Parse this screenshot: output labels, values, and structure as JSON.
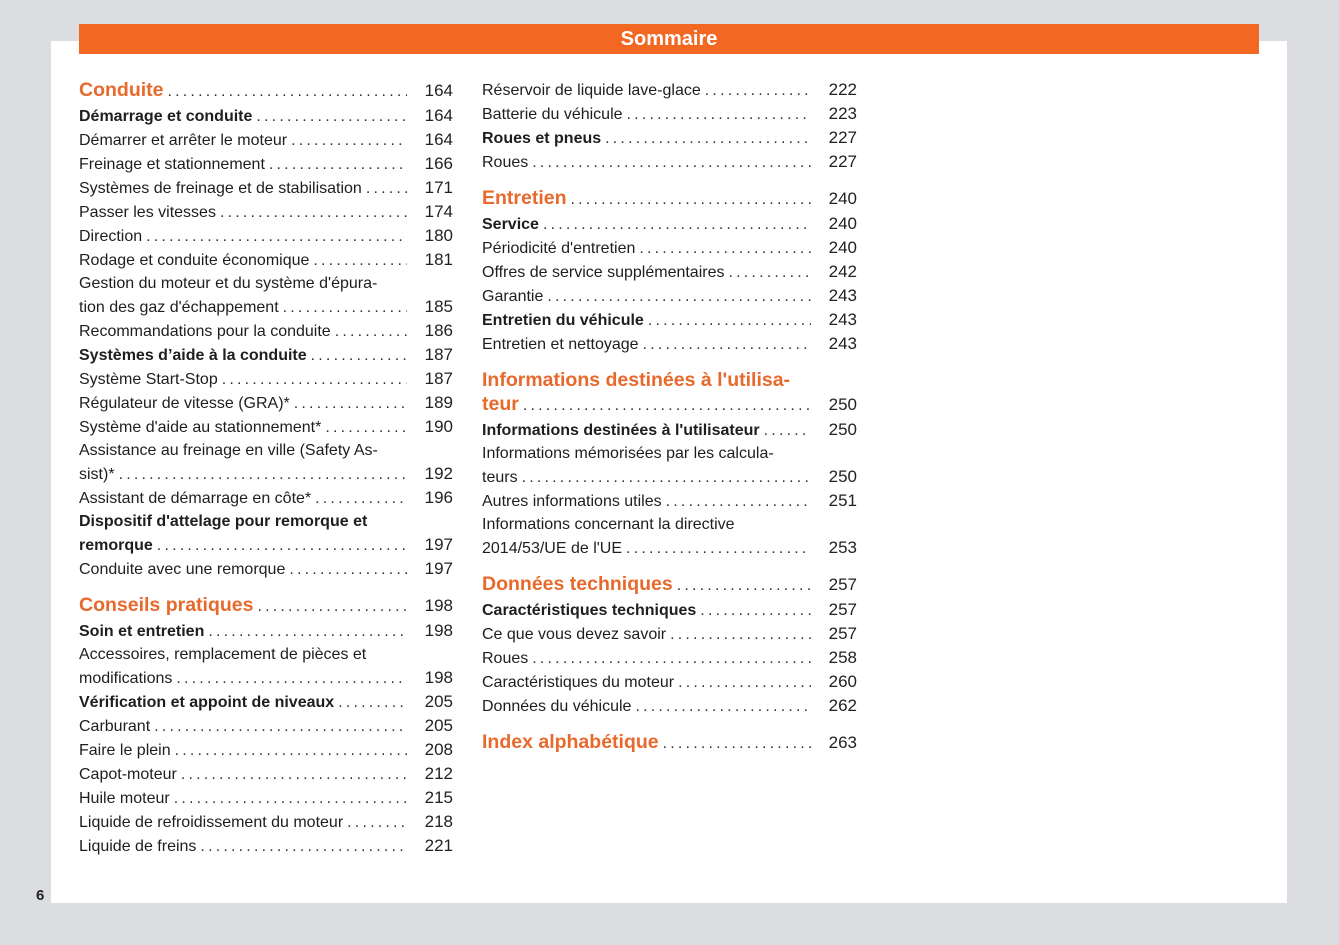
{
  "header": {
    "title": "Sommaire"
  },
  "footer": {
    "page_number": "6"
  },
  "colors": {
    "accent": "#f26722",
    "background": "#dcdde0"
  },
  "toc": {
    "columns": [
      [
        {
          "level": "h",
          "lines": [
            "Conduite"
          ],
          "page": "164"
        },
        {
          "level": "b",
          "lines": [
            "Démarrage et conduite"
          ],
          "page": "164"
        },
        {
          "level": "n",
          "lines": [
            "Démarrer et arrêter le moteur"
          ],
          "page": "164"
        },
        {
          "level": "n",
          "lines": [
            "Freinage et stationnement"
          ],
          "page": "166"
        },
        {
          "level": "n",
          "lines": [
            "Systèmes de freinage et de stabilisation"
          ],
          "page": "171"
        },
        {
          "level": "n",
          "lines": [
            "Passer les vitesses"
          ],
          "page": "174"
        },
        {
          "level": "n",
          "lines": [
            "Direction"
          ],
          "page": "180"
        },
        {
          "level": "n",
          "lines": [
            "Rodage et conduite économique"
          ],
          "page": "181"
        },
        {
          "level": "n",
          "lines": [
            "Gestion du moteur et du système d'épura-",
            "tion des gaz d'échappement"
          ],
          "page": "185"
        },
        {
          "level": "n",
          "lines": [
            "Recommandations pour la conduite"
          ],
          "page": "186"
        },
        {
          "level": "b",
          "lines": [
            "Systèmes d’aide à la conduite"
          ],
          "page": "187"
        },
        {
          "level": "n",
          "lines": [
            "Système Start-Stop"
          ],
          "page": "187"
        },
        {
          "level": "n",
          "lines": [
            "Régulateur de vitesse (GRA)*"
          ],
          "page": "189"
        },
        {
          "level": "n",
          "lines": [
            "Système d'aide au stationnement*"
          ],
          "page": "190"
        },
        {
          "level": "n",
          "lines": [
            "Assistance au freinage en ville (Safety As-",
            "sist)*"
          ],
          "page": "192"
        },
        {
          "level": "n",
          "lines": [
            "Assistant de démarrage en côte*"
          ],
          "page": "196"
        },
        {
          "level": "b",
          "lines": [
            "Dispositif d'attelage pour remorque et",
            "remorque"
          ],
          "page": "197"
        },
        {
          "level": "n",
          "lines": [
            "Conduite avec une remorque"
          ],
          "page": "197"
        },
        {
          "level": "h",
          "lines": [
            "Conseils pratiques"
          ],
          "page": "198"
        },
        {
          "level": "b",
          "lines": [
            "Soin et entretien"
          ],
          "page": "198"
        },
        {
          "level": "n",
          "lines": [
            "Accessoires, remplacement de pièces et",
            "modifications"
          ],
          "page": "198"
        },
        {
          "level": "b",
          "lines": [
            "Vérification et appoint de niveaux"
          ],
          "page": "205"
        },
        {
          "level": "n",
          "lines": [
            "Carburant"
          ],
          "page": "205"
        },
        {
          "level": "n",
          "lines": [
            "Faire le plein"
          ],
          "page": "208"
        },
        {
          "level": "n",
          "lines": [
            "Capot-moteur"
          ],
          "page": "212"
        },
        {
          "level": "n",
          "lines": [
            "Huile moteur"
          ],
          "page": "215"
        },
        {
          "level": "n",
          "lines": [
            "Liquide de refroidissement du moteur"
          ],
          "page": "218"
        },
        {
          "level": "n",
          "lines": [
            "Liquide de freins"
          ],
          "page": "221"
        }
      ],
      [
        {
          "level": "n",
          "lines": [
            "Réservoir de liquide lave-glace"
          ],
          "page": "222"
        },
        {
          "level": "n",
          "lines": [
            "Batterie du véhicule"
          ],
          "page": "223"
        },
        {
          "level": "b",
          "lines": [
            "Roues et pneus"
          ],
          "page": "227"
        },
        {
          "level": "n",
          "lines": [
            "Roues"
          ],
          "page": "227"
        },
        {
          "level": "h",
          "lines": [
            "Entretien"
          ],
          "page": "240"
        },
        {
          "level": "b",
          "lines": [
            "Service"
          ],
          "page": "240"
        },
        {
          "level": "n",
          "lines": [
            "Périodicité d'entretien"
          ],
          "page": "240"
        },
        {
          "level": "n",
          "lines": [
            "Offres de service supplémentaires"
          ],
          "page": "242"
        },
        {
          "level": "n",
          "lines": [
            "Garantie"
          ],
          "page": "243"
        },
        {
          "level": "b",
          "lines": [
            "Entretien du véhicule"
          ],
          "page": "243"
        },
        {
          "level": "n",
          "lines": [
            "Entretien et nettoyage"
          ],
          "page": "243"
        },
        {
          "level": "h",
          "lines": [
            "Informations destinées à l'utilisa-",
            "teur"
          ],
          "page": "250"
        },
        {
          "level": "b",
          "lines": [
            "Informations destinées à l'utilisateur"
          ],
          "page": "250"
        },
        {
          "level": "n",
          "lines": [
            "Informations mémorisées par les calcula-",
            "teurs"
          ],
          "page": "250"
        },
        {
          "level": "n",
          "lines": [
            "Autres informations utiles"
          ],
          "page": "251"
        },
        {
          "level": "n",
          "lines": [
            "Informations concernant la directive",
            "2014/53/UE de l'UE"
          ],
          "page": "253"
        },
        {
          "level": "h",
          "lines": [
            "Données techniques"
          ],
          "page": "257"
        },
        {
          "level": "b",
          "lines": [
            "Caractéristiques techniques"
          ],
          "page": "257"
        },
        {
          "level": "n",
          "lines": [
            "Ce que vous devez savoir"
          ],
          "page": "257"
        },
        {
          "level": "n",
          "lines": [
            "Roues"
          ],
          "page": "258"
        },
        {
          "level": "n",
          "lines": [
            "Caractéristiques du moteur"
          ],
          "page": "260"
        },
        {
          "level": "n",
          "lines": [
            "Données du véhicule"
          ],
          "page": "262"
        },
        {
          "level": "h",
          "lines": [
            "Index alphabétique"
          ],
          "page": "263"
        }
      ]
    ]
  }
}
